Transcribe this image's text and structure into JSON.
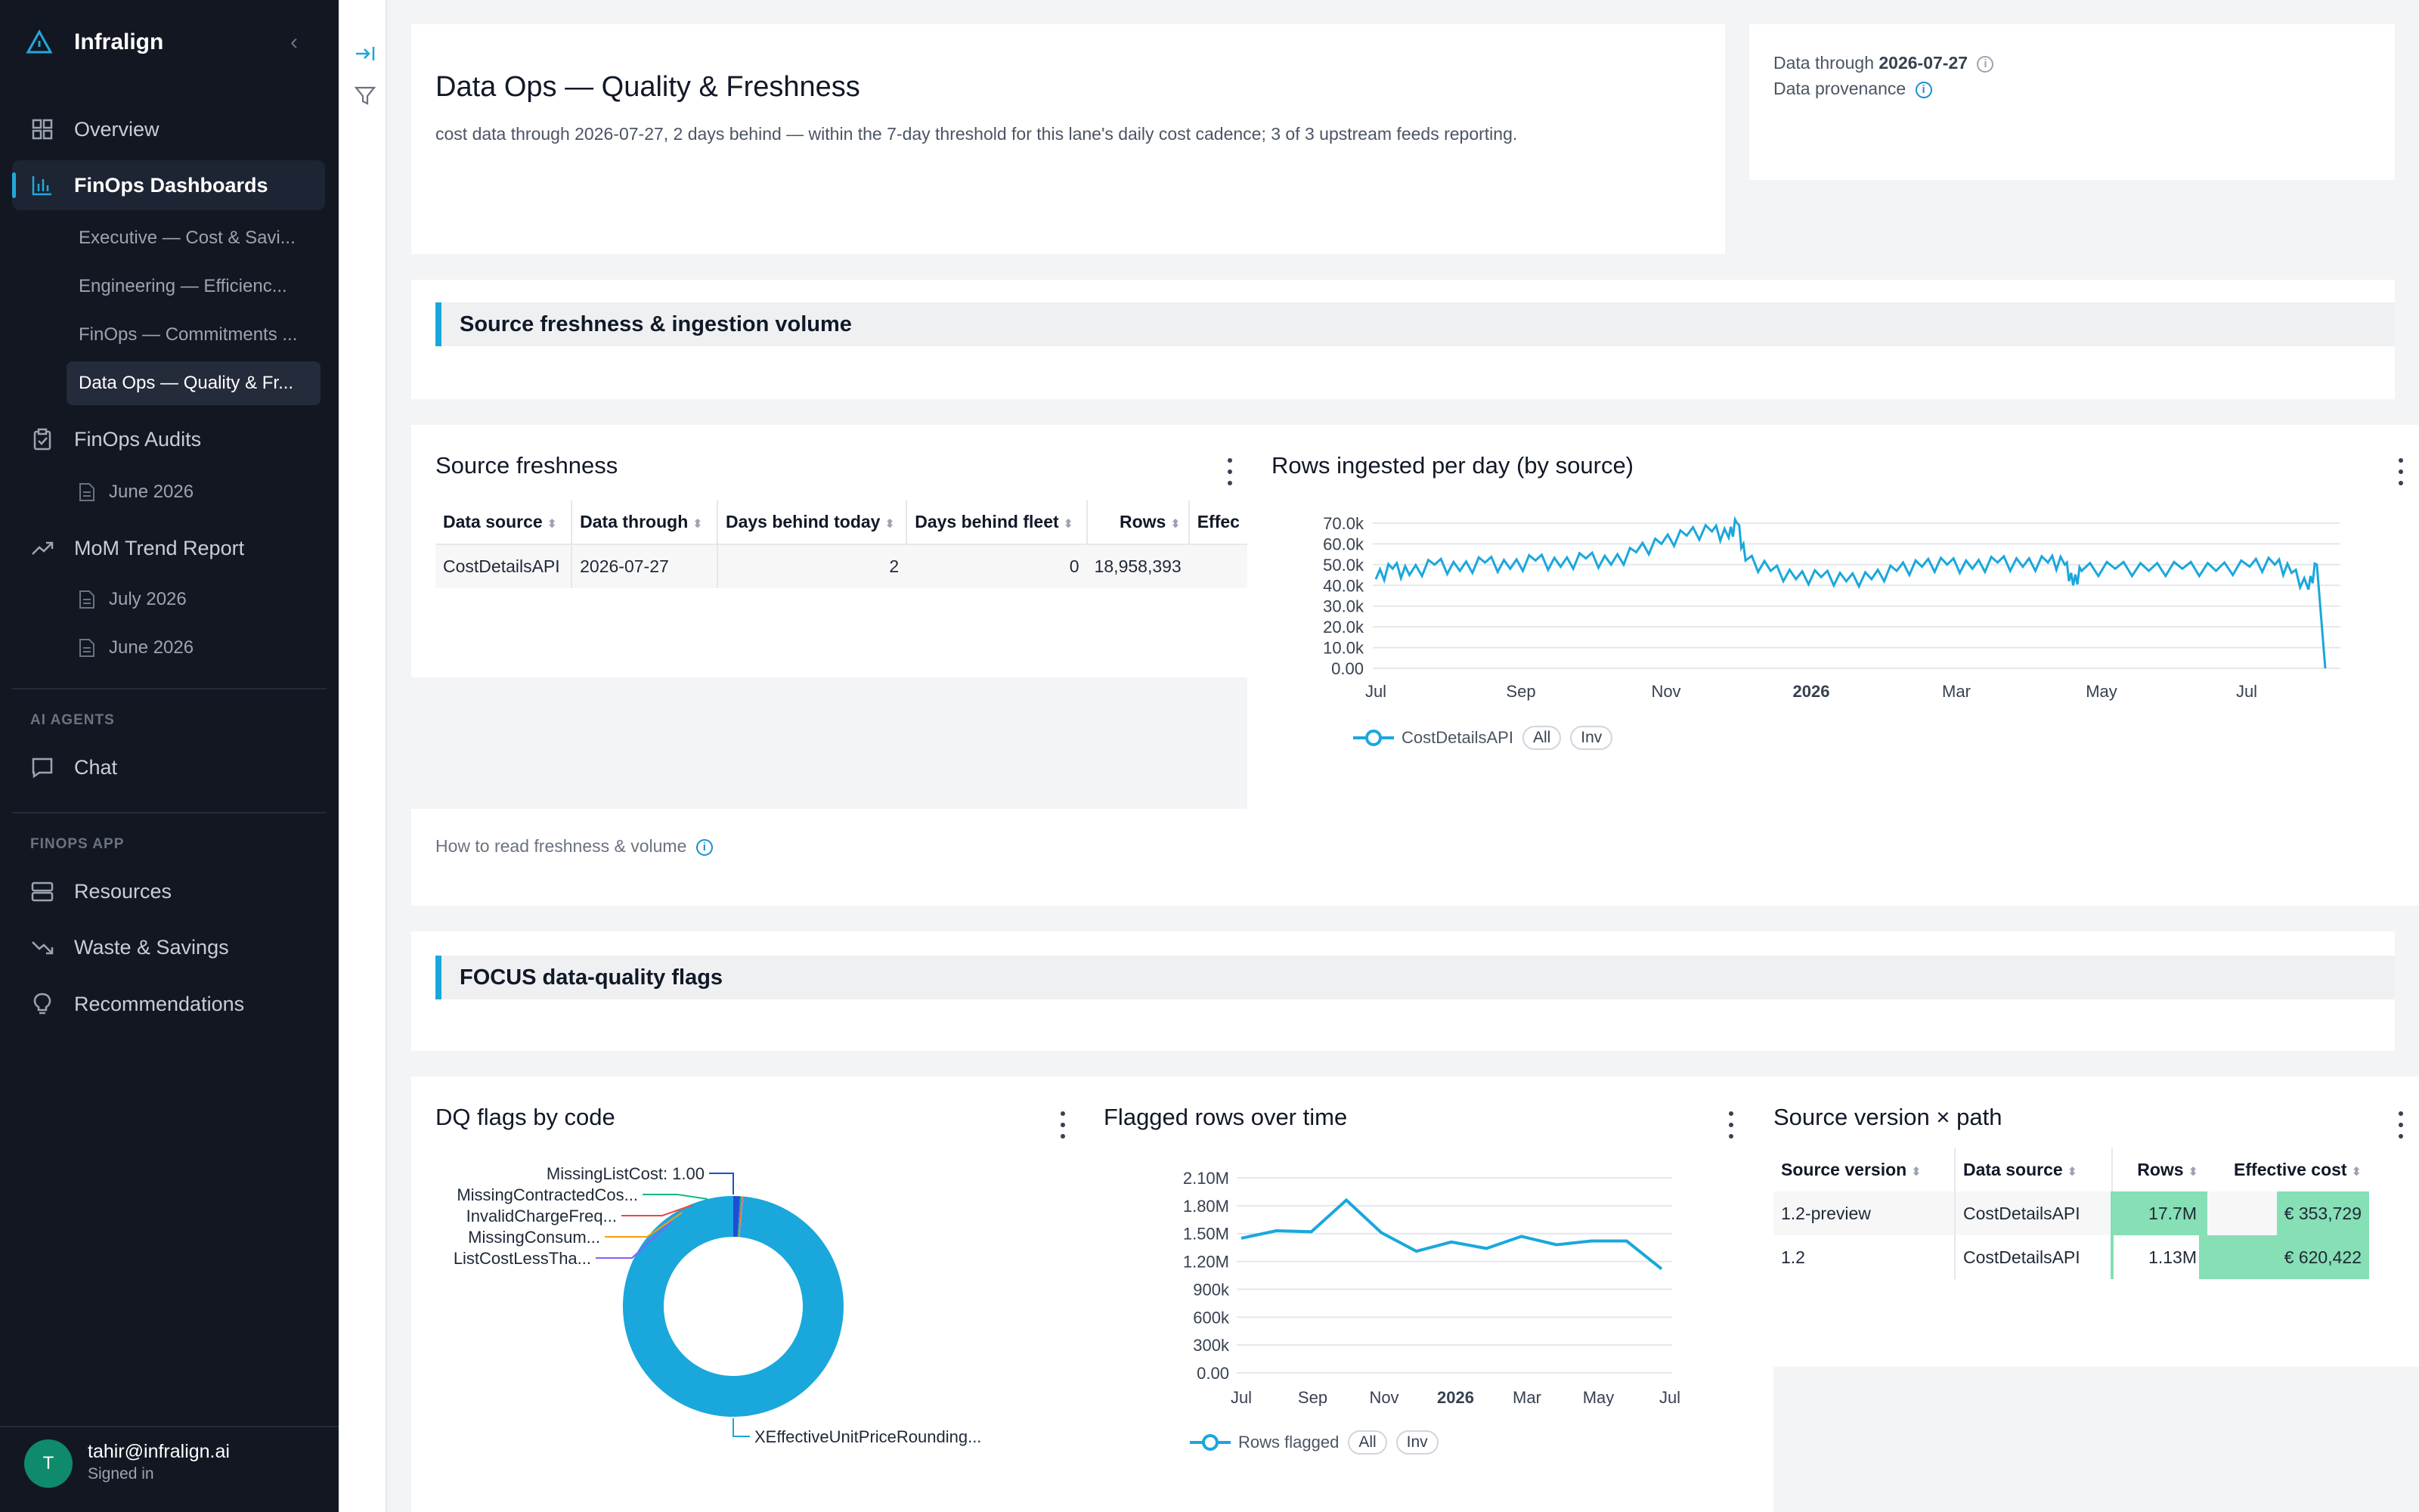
{
  "sidebar": {
    "brand": "Infralign",
    "nav": [
      {
        "label": "Overview",
        "icon": "grid-icon"
      },
      {
        "label": "FinOps Dashboards",
        "icon": "bar-chart-icon"
      },
      {
        "label": "FinOps Audits",
        "icon": "clipboard-icon"
      },
      {
        "label": "MoM Trend Report",
        "icon": "trend-up-icon"
      }
    ],
    "dashboards": [
      "Executive — Cost & Savi...",
      "Engineering — Efficienc...",
      "FinOps — Commitments ...",
      "Data Ops — Quality & Fr..."
    ],
    "audits": [
      "June 2026"
    ],
    "mom_reports": [
      "July 2026",
      "June 2026"
    ],
    "ai_agents_title": "AI AGENTS",
    "chat": "Chat",
    "finops_app_title": "FINOPS APP",
    "app_items": [
      "Resources",
      "Waste & Savings",
      "Recommendations"
    ],
    "user": {
      "initial": "T",
      "email": "tahir@infralign.ai",
      "status": "Signed in"
    }
  },
  "header": {
    "title": "Data Ops — Quality & Freshness",
    "description": "cost data through 2026-07-27, 2 days behind — within the 7-day threshold for this lane's daily cost cadence; 3 of 3 upstream feeds reporting.",
    "data_through_label": "Data through",
    "data_through_value": "2026-07-27",
    "provenance_label": "Data provenance"
  },
  "sections": {
    "freshness": "Source freshness & ingestion volume",
    "dq": "FOCUS data-quality flags"
  },
  "freshness_table": {
    "title": "Source freshness",
    "columns": [
      "Data source",
      "Data through",
      "Days behind today",
      "Days behind fleet",
      "Rows",
      "Effec"
    ],
    "rows": [
      [
        "CostDetailsAPI",
        "2026-07-27",
        "2",
        "0",
        "18,958,393",
        ""
      ]
    ]
  },
  "how_to_read": "How to read freshness & volume",
  "rows_chart": {
    "title": "Rows ingested per day (by source)",
    "legend": "CostDetailsAPI",
    "pill_all": "All",
    "pill_inv": "Inv"
  },
  "dq_chart": {
    "title": "DQ flags by code",
    "labels": [
      "MissingListCost: 1.00",
      "MissingContractedCos...",
      "InvalidChargeFreq...",
      "MissingConsum...",
      "ListCostLessTha...",
      "XEffectiveUnitPriceRounding..."
    ]
  },
  "flagged_chart": {
    "title": "Flagged rows over time",
    "legend": "Rows flagged",
    "pill_all": "All",
    "pill_inv": "Inv"
  },
  "version_table": {
    "title": "Source version × path",
    "columns": [
      "Source version",
      "Data source",
      "Rows",
      "Effective cost"
    ],
    "rows": [
      {
        "version": "1.2-preview",
        "source": "CostDetailsAPI",
        "rows": "17.7M",
        "cost": "€ 353,729",
        "rows_frac": 1.0,
        "cost_frac": 0.57
      },
      {
        "version": "1.2",
        "source": "CostDetailsAPI",
        "rows": "1.13M",
        "cost": "€ 620,422",
        "rows_frac": 0.06,
        "cost_frac": 1.0
      }
    ]
  },
  "colors": {
    "accent": "#1aa7dc",
    "sidebar": "#131722",
    "heat": "#86dfb5"
  },
  "chart_data": [
    {
      "type": "line",
      "title": "Rows ingested per day (by source)",
      "x_ticks": [
        "Jul",
        "Sep",
        "Nov",
        "2026",
        "Mar",
        "May",
        "Jul"
      ],
      "y_ticks": [
        "0.00",
        "10.0k",
        "20.0k",
        "30.0k",
        "40.0k",
        "50.0k",
        "60.0k",
        "70.0k"
      ],
      "ylim": [
        0,
        70000
      ],
      "series": [
        {
          "name": "CostDetailsAPI",
          "points": [
            [
              0,
              43000
            ],
            [
              4,
              48000
            ],
            [
              8,
              45000
            ],
            [
              14,
              50000
            ],
            [
              20,
              47000
            ],
            [
              26,
              51000
            ],
            [
              32,
              48000
            ],
            [
              38,
              52000
            ],
            [
              44,
              49000
            ],
            [
              50,
              53000
            ],
            [
              56,
              50000
            ],
            [
              62,
              56000
            ],
            [
              68,
              60000
            ],
            [
              74,
              64000
            ],
            [
              80,
              66000
            ],
            [
              84,
              63000
            ],
            [
              86,
              70000
            ],
            [
              88,
              52000
            ],
            [
              94,
              47000
            ],
            [
              100,
              43000
            ],
            [
              106,
              44000
            ],
            [
              112,
              42000
            ],
            [
              118,
              43000
            ],
            [
              124,
              47000
            ],
            [
              130,
              49000
            ],
            [
              136,
              50000
            ],
            [
              142,
              48000
            ],
            [
              148,
              51000
            ],
            [
              154,
              49000
            ],
            [
              160,
              51000
            ],
            [
              164,
              50000
            ],
            [
              166,
              40000
            ],
            [
              168,
              47000
            ],
            [
              176,
              48000
            ],
            [
              184,
              47000
            ],
            [
              192,
              48000
            ],
            [
              200,
              47000
            ],
            [
              208,
              49000
            ],
            [
              214,
              50000
            ],
            [
              218,
              46000
            ],
            [
              222,
              38000
            ],
            [
              224,
              50000
            ],
            [
              226,
              0
            ]
          ]
        }
      ],
      "x_range": [
        0,
        226
      ]
    },
    {
      "type": "pie",
      "title": "DQ flags by code",
      "categories": [
        "MissingListCost",
        "MissingContractedCos...",
        "InvalidChargeFreq...",
        "MissingConsum...",
        "ListCostLessTha...",
        "XEffectiveUnitPriceRounding..."
      ],
      "values": [
        1.0,
        0.2,
        0.1,
        0.1,
        0.1,
        98.5
      ]
    },
    {
      "type": "line",
      "title": "Flagged rows over time",
      "x_ticks": [
        "Jul",
        "Sep",
        "Nov",
        "2026",
        "Mar",
        "May",
        "Jul"
      ],
      "y_ticks": [
        "0.00",
        "300k",
        "600k",
        "900k",
        "1.20M",
        "1.50M",
        "1.80M",
        "2.10M"
      ],
      "ylim": [
        0,
        2100000
      ],
      "series": [
        {
          "name": "Rows flagged",
          "values": [
            1450000,
            1530000,
            1520000,
            1860000,
            1510000,
            1310000,
            1410000,
            1340000,
            1470000,
            1380000,
            1420000,
            1420000,
            1120000
          ]
        }
      ]
    }
  ]
}
